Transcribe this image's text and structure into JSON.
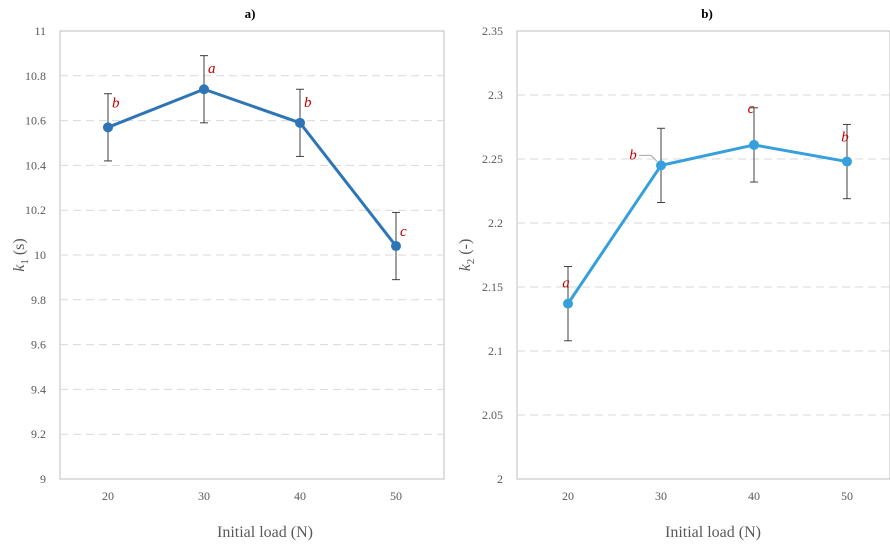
{
  "chart_data": [
    {
      "type": "line",
      "title": "a)",
      "xlabel": "Initial load (N)",
      "ylabel": {
        "base": "k",
        "sub": "1",
        "unit": " (s)"
      },
      "categories": [
        "20",
        "30",
        "40",
        "50"
      ],
      "ylim": [
        9,
        11
      ],
      "ytick_step": 0.2,
      "yticks": [
        "9",
        "9.2",
        "9.4",
        "9.6",
        "9.8",
        "10",
        "10.2",
        "10.4",
        "10.6",
        "10.8",
        "11"
      ],
      "grid": "horizontal-dashed",
      "color": "#2e75b6",
      "series": [
        {
          "values": [
            10.57,
            10.74,
            10.59,
            10.04
          ],
          "errors": [
            0.15,
            0.15,
            0.15,
            0.15
          ],
          "letters": [
            "b",
            "a",
            "b",
            "c"
          ]
        }
      ]
    },
    {
      "type": "line",
      "title": "b)",
      "xlabel": "Initial load (N)",
      "ylabel": {
        "base": "k",
        "sub": "2",
        "unit": " (-)"
      },
      "categories": [
        "20",
        "30",
        "40",
        "50"
      ],
      "ylim": [
        2,
        2.35
      ],
      "ytick_step": 0.05,
      "yticks": [
        "2",
        "2.05",
        "2.1",
        "2.15",
        "2.2",
        "2.25",
        "2.3",
        "2.35"
      ],
      "grid": "horizontal-dashed",
      "color": "#36a0dc",
      "series": [
        {
          "values": [
            2.137,
            2.245,
            2.261,
            2.248
          ],
          "errors": [
            0.029,
            0.029,
            0.029,
            0.029
          ],
          "letters": [
            "a",
            "b",
            "c",
            "b"
          ]
        }
      ]
    }
  ]
}
